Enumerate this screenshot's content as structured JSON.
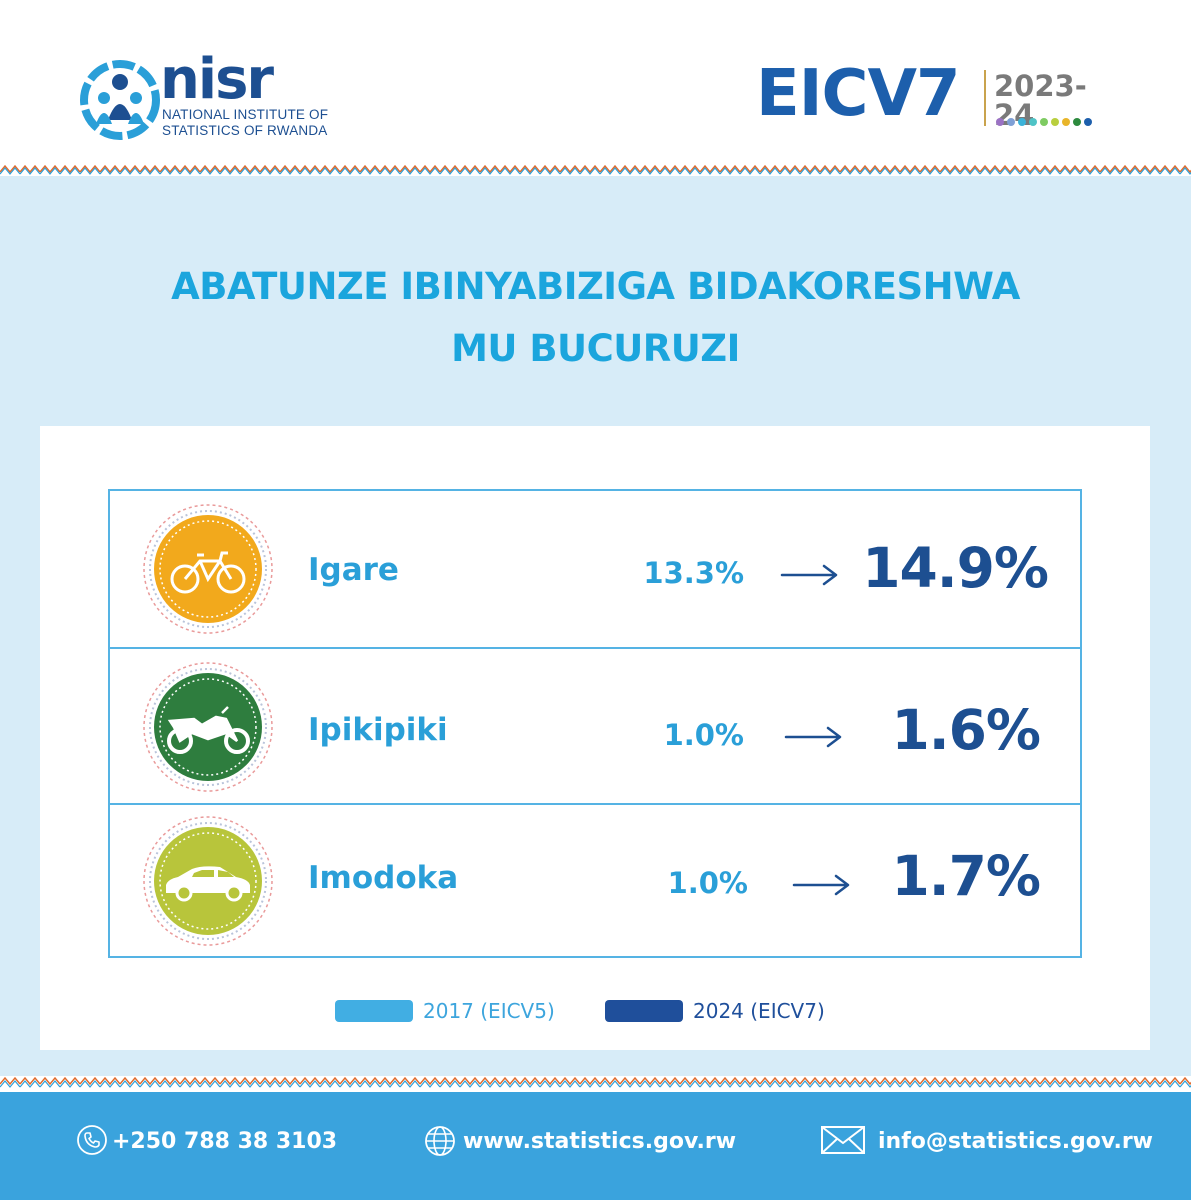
{
  "header": {
    "logo": {
      "wordmark": "nisr",
      "subtitle_line1": "NATIONAL INSTITUTE OF",
      "subtitle_line2": "STATISTICS OF RWANDA"
    },
    "survey": {
      "name": "EICV7",
      "year": "2023-24",
      "dot_colors": [
        "#9b72c4",
        "#7fa0d6",
        "#3bb3d9",
        "#4fc3c6",
        "#7ecb62",
        "#b9cf3e",
        "#e8b52a",
        "#2d8a3e",
        "#1d5fac"
      ]
    }
  },
  "title": {
    "line1": "ABATUNZE IBINYABIZIGA BIDAKORESHWA",
    "line2": "MU BUCURUZI"
  },
  "chart_data": {
    "type": "table",
    "categories": [
      "Igare",
      "Ipikipiki",
      "Imodoka"
    ],
    "series": [
      {
        "name": "2017 (EICV5)",
        "values": [
          "13.3%",
          "1.0%",
          "1.0%"
        ]
      },
      {
        "name": "2024 (EICV7)",
        "values": [
          "14.9%",
          "1.6%",
          "1.7%"
        ]
      }
    ]
  },
  "rows": [
    {
      "label": "Igare",
      "icon": "bicycle-icon",
      "badge_color": "#f2a91c",
      "v2017": "13.3%",
      "v2024": "14.9%"
    },
    {
      "label": "Ipikipiki",
      "icon": "motorcycle-icon",
      "badge_color": "#2e7d3e",
      "v2017": "1.0%",
      "v2024": "1.6%"
    },
    {
      "label": "Imodoka",
      "icon": "car-icon",
      "badge_color": "#b8c53b",
      "v2017": "1.0%",
      "v2024": "1.7%"
    }
  ],
  "legend": [
    {
      "label": "2017 (EICV5)",
      "color": "#41aee3",
      "text_color": "#3da5dd"
    },
    {
      "label": "2024 (EICV7)",
      "color": "#1f4f9b",
      "text_color": "#1f4f9b"
    }
  ],
  "colors": {
    "band": "#d7ecf8",
    "title": "#1ba5dd",
    "table_border": "#55b3e4",
    "value_2017": "#2a9fd8",
    "value_2024": "#1d4f91",
    "footer": "#3aa3dd"
  },
  "footer": {
    "phone": {
      "icon": "phone-icon",
      "text": "+250 788 38 3103"
    },
    "website": {
      "icon": "globe-icon",
      "text": "www.statistics.gov.rw"
    },
    "email": {
      "icon": "envelope-icon",
      "text": "info@statistics.gov.rw"
    }
  }
}
